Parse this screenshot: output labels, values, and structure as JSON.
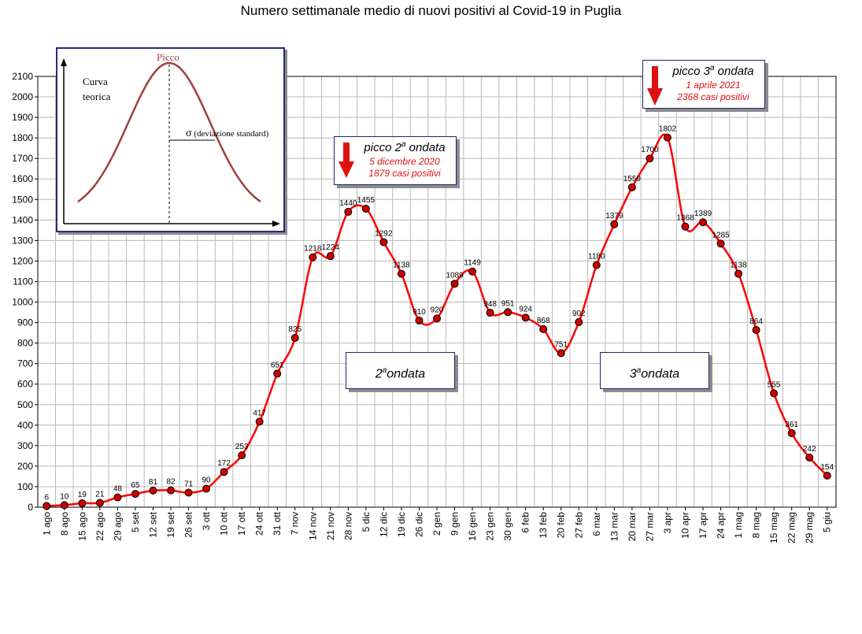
{
  "chart_data": {
    "type": "line",
    "title": "Numero settimanale medio di nuovi positivi al Covid-19 in Puglia",
    "xlabel": "",
    "ylabel": "",
    "ylim": [
      0,
      2100
    ],
    "yticks": [
      0,
      100,
      200,
      300,
      400,
      500,
      600,
      700,
      800,
      900,
      1000,
      1100,
      1200,
      1300,
      1400,
      1500,
      1600,
      1700,
      1800,
      1900,
      2000,
      2100
    ],
    "grid": true,
    "line_color": "#ff0000",
    "marker_color": "#cc0000",
    "categories": [
      "1 ago",
      "8 ago",
      "15 ago",
      "22 ago",
      "29 ago",
      "5 set",
      "12 set",
      "19 set",
      "26 set",
      "3 ott",
      "10 ott",
      "17 ott",
      "24 ott",
      "31 ott",
      "7 nov",
      "14 nov",
      "21 nov",
      "28 nov",
      "5 dic",
      "12 dic",
      "19 dic",
      "26 dic",
      "2 gen",
      "9 gen",
      "16 gen",
      "23 gen",
      "30 gen",
      "6 feb",
      "13 feb",
      "20 feb",
      "27 feb",
      "6 mar",
      "13 mar",
      "20 mar",
      "27 mar",
      "3 apr",
      "10 apr",
      "17 apr",
      "24 apr",
      "1 mag",
      "8 mag",
      "15 mag",
      "22 mag",
      "29 mag",
      "5 giu"
    ],
    "series": [
      {
        "values": [
          6,
          10,
          19,
          21,
          48,
          65,
          81,
          82,
          71,
          90,
          172,
          253,
          417,
          651,
          825,
          1218,
          1224,
          1440,
          1455,
          1292,
          1138,
          910,
          920,
          1089,
          1149,
          948,
          951,
          924,
          868,
          751,
          902,
          1180,
          1379,
          1559,
          1700,
          1802,
          1368,
          1389,
          1285,
          1138,
          864,
          555,
          361,
          242,
          154
        ]
      }
    ],
    "annotations": {
      "peak2": {
        "title_base": "picco 2",
        "title_sup": "a",
        "title_rest": " ondata",
        "date": "5 dicembre 2020",
        "cases": "1879 casi positivi"
      },
      "peak3": {
        "title_base": "picco 3",
        "title_sup": "a",
        "title_rest": " ondata",
        "date": "1 aprile 2021",
        "cases": "2368 casi positivi"
      },
      "wave2": {
        "base": "2",
        "sup": "a",
        "rest": "ondata"
      },
      "wave3": {
        "base": "3",
        "sup": "a",
        "rest": "ondata"
      },
      "arrow_color": "#e01010"
    },
    "inset": {
      "peak_label": "Picco",
      "curve_label_1": "Curva",
      "curve_label_2": "teorica",
      "sigma_symbol": "σ",
      "sigma_label": "(deviazione standard)",
      "curve_color": "#a04040"
    }
  }
}
